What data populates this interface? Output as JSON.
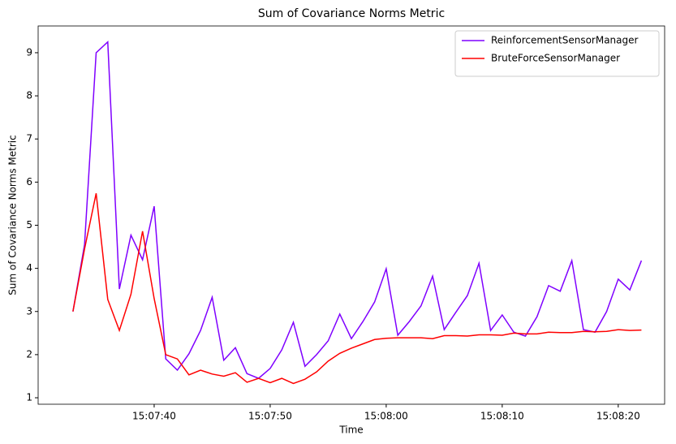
{
  "chart_data": {
    "type": "line",
    "title": "Sum of Covariance Norms Metric",
    "x_label": "Time",
    "y_label": "Sum of Covariance Norms Metric",
    "x": [
      "15:07:33",
      "15:07:34",
      "15:07:35",
      "15:07:36",
      "15:07:37",
      "15:07:38",
      "15:07:39",
      "15:07:40",
      "15:07:41",
      "15:07:42",
      "15:07:43",
      "15:07:44",
      "15:07:45",
      "15:07:46",
      "15:07:47",
      "15:07:48",
      "15:07:49",
      "15:07:50",
      "15:07:51",
      "15:07:52",
      "15:07:53",
      "15:07:54",
      "15:07:55",
      "15:07:56",
      "15:07:57",
      "15:07:58",
      "15:07:59",
      "15:08:00",
      "15:08:01",
      "15:08:02",
      "15:08:03",
      "15:08:04",
      "15:08:05",
      "15:08:06",
      "15:08:07",
      "15:08:08",
      "15:08:09",
      "15:08:10",
      "15:08:11",
      "15:08:12",
      "15:08:13",
      "15:08:14",
      "15:08:15",
      "15:08:16",
      "15:08:17",
      "15:08:18",
      "15:08:19",
      "15:08:20",
      "15:08:21",
      "15:08:22"
    ],
    "series": [
      {
        "name": "ReinforcementSensorManager",
        "color": "#7f00ff",
        "values": [
          3.0,
          4.55,
          9.0,
          9.25,
          3.52,
          4.77,
          4.2,
          5.44,
          1.9,
          1.64,
          2.02,
          2.56,
          3.33,
          1.87,
          2.16,
          1.56,
          1.45,
          1.68,
          2.11,
          2.75,
          1.73,
          2.0,
          2.32,
          2.94,
          2.37,
          2.77,
          3.22,
          3.99,
          2.45,
          2.77,
          3.13,
          3.82,
          2.58,
          2.98,
          3.37,
          4.12,
          2.56,
          2.92,
          2.52,
          2.43,
          2.88,
          3.6,
          3.47,
          4.18,
          2.58,
          2.52,
          3.0,
          3.75,
          3.5,
          4.18
        ]
      },
      {
        "name": "BruteForceSensorManager",
        "color": "#ff0000",
        "values": [
          3.0,
          4.45,
          5.74,
          3.28,
          2.56,
          3.4,
          4.86,
          3.3,
          2.0,
          1.9,
          1.53,
          1.64,
          1.55,
          1.5,
          1.58,
          1.36,
          1.45,
          1.35,
          1.45,
          1.33,
          1.43,
          1.6,
          1.85,
          2.03,
          2.15,
          2.25,
          2.35,
          2.38,
          2.39,
          2.39,
          2.39,
          2.37,
          2.44,
          2.44,
          2.43,
          2.46,
          2.46,
          2.45,
          2.5,
          2.48,
          2.48,
          2.52,
          2.51,
          2.51,
          2.54,
          2.53,
          2.54,
          2.58,
          2.56,
          2.57
        ]
      }
    ],
    "xlim": [
      "15:07:30",
      "15:08:24"
    ],
    "xticks": [
      "15:07:40",
      "15:07:50",
      "15:08:00",
      "15:08:10",
      "15:08:20"
    ],
    "ylim": [
      0.85,
      9.62
    ],
    "yticks": [
      1,
      2,
      3,
      4,
      5,
      6,
      7,
      8,
      9
    ],
    "grid": false,
    "legend": "upper-right"
  }
}
